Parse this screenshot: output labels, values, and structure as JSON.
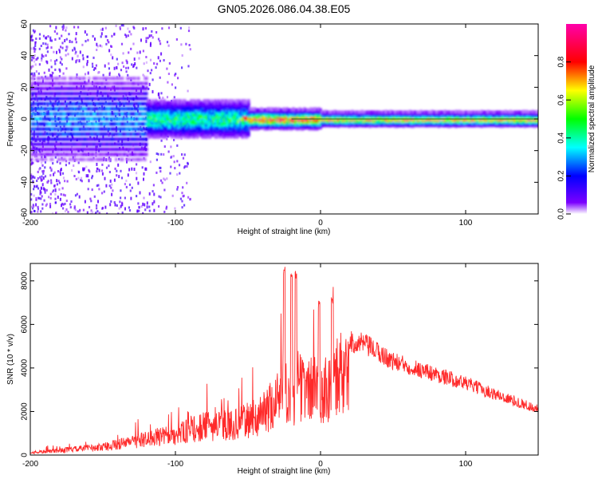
{
  "title": "GN05.2026.086.04.38.E05",
  "chart_data": [
    {
      "type": "heatmap",
      "xlabel": "Height of straight line (km)",
      "ylabel": "Frequency (Hz)",
      "xlim": [
        -200,
        150
      ],
      "ylim": [
        -60,
        60
      ],
      "x_ticks": [
        -200,
        -100,
        0,
        100
      ],
      "y_ticks": [
        -60,
        -40,
        -20,
        0,
        20,
        40,
        60
      ],
      "colorbar": {
        "label": "Normalized spectral amplitude",
        "range": [
          0,
          1
        ],
        "ticks": [
          0.0,
          0.2,
          0.4,
          0.6,
          0.8
        ],
        "colormap": [
          "#ffffff",
          "#7b00ff",
          "#0000ff",
          "#00ffff",
          "#00ff00",
          "#ffff00",
          "#ff0000",
          "#ff00aa"
        ]
      },
      "ridge_frequency_hz": 0,
      "ridge_segments": [
        {
          "x_range": [
            -200,
            -120
          ],
          "spread_hz": 20,
          "peak_amplitude": 0.3
        },
        {
          "x_range": [
            -120,
            -50
          ],
          "spread_hz": 8,
          "peak_amplitude": 0.5
        },
        {
          "x_range": [
            -50,
            0
          ],
          "spread_hz": 4,
          "peak_amplitude": 0.85
        },
        {
          "x_range": [
            0,
            150
          ],
          "spread_hz": 3,
          "peak_amplitude": 0.7
        }
      ]
    },
    {
      "type": "line",
      "xlabel": "Height of straight line (km)",
      "ylabel": "SNR (10 * v/v)",
      "xlim": [
        -200,
        150
      ],
      "ylim": [
        0,
        8800
      ],
      "x_ticks": [
        -200,
        -100,
        0,
        100
      ],
      "y_ticks": [
        0,
        2000,
        4000,
        6000,
        8000
      ],
      "line_color": "#ff2a2a",
      "envelope": {
        "x": [
          -200,
          -150,
          -120,
          -100,
          -80,
          -60,
          -40,
          -30,
          -25,
          -20,
          -15,
          -10,
          -5,
          0,
          10,
          20,
          30,
          50,
          80,
          100,
          120,
          150
        ],
        "y": [
          150,
          500,
          1000,
          1300,
          1800,
          1900,
          2500,
          3600,
          4800,
          3000,
          4500,
          4000,
          4200,
          4000,
          4500,
          5200,
          5100,
          4300,
          3700,
          3300,
          2800,
          2100
        ]
      },
      "spikes": [
        {
          "x": -25,
          "y": 8700
        },
        {
          "x": -20,
          "y": 8500
        },
        {
          "x": -17,
          "y": 8500
        },
        {
          "x": 8,
          "y": 7300
        },
        {
          "x": -1,
          "y": 7100
        }
      ]
    }
  ]
}
